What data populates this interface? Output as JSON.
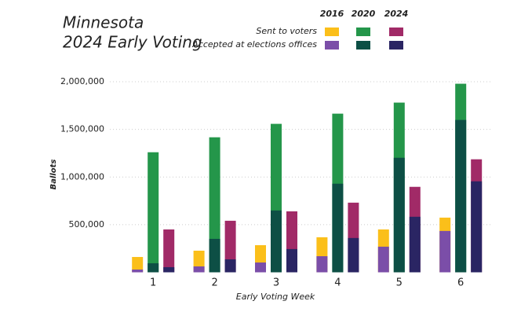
{
  "chart_data": {
    "type": "overlay-bar",
    "title": "Minnesota",
    "subtitle": "2024 Early Voting",
    "x_label": "Early Voting Week",
    "y_label": "Ballots",
    "categories": [
      "1",
      "2",
      "3",
      "4",
      "5",
      "6"
    ],
    "measures": [
      "Sent to voters",
      "Accepted at elections offices"
    ],
    "series": [
      {
        "name": "2016",
        "sent_color": "#fbbf1a",
        "accepted_color": "#7b4ea8",
        "sent": [
          161000,
          227000,
          285000,
          368000,
          450000,
          574000
        ],
        "accepted": [
          29000,
          62000,
          103000,
          169000,
          269000,
          434000
        ]
      },
      {
        "name": "2020",
        "sent_color": "#24964a",
        "accepted_color": "#0d4f45",
        "sent": [
          1260000,
          1417000,
          1558000,
          1665000,
          1781000,
          1979000
        ],
        "accepted": [
          95000,
          351000,
          649000,
          930000,
          1202000,
          1599000
        ]
      },
      {
        "name": "2024",
        "sent_color": "#a12a67",
        "accepted_color": "#2a2563",
        "sent": [
          450000,
          541000,
          640000,
          731000,
          897000,
          1186000
        ],
        "accepted": [
          54000,
          136000,
          244000,
          360000,
          583000,
          955000
        ]
      }
    ],
    "ylim": [
      0,
      2000000
    ],
    "yticks": [
      {
        "value": 500000,
        "label": "500,000"
      },
      {
        "value": 1000000,
        "label": "1,000,000"
      },
      {
        "value": 1500000,
        "label": "1,500,000"
      },
      {
        "value": 2000000,
        "label": "2,000,000"
      }
    ],
    "grid": true
  }
}
